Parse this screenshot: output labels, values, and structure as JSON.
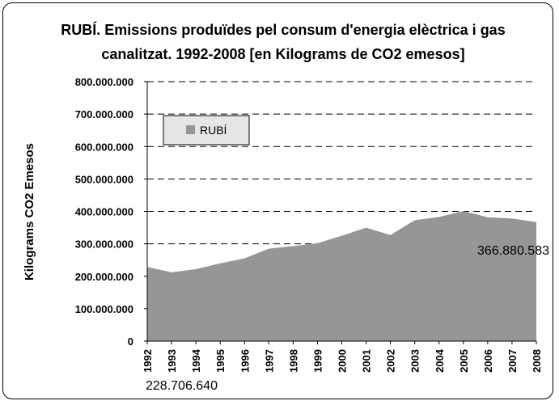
{
  "chart_data": {
    "type": "area",
    "title_line1": "RUBÍ. Emissions produïdes pel consum d'energia elèctrica i gas",
    "title_line2": "canalitzat. 1992-2008 [en Kilograms de CO2 emesos]",
    "ylabel": "Kilograms CO2 Emesos",
    "xlabel": "",
    "x": [
      "1992",
      "1993",
      "1994",
      "1995",
      "1996",
      "1997",
      "1998",
      "1999",
      "2000",
      "2001",
      "2002",
      "2003",
      "2004",
      "2005",
      "2006",
      "2007",
      "2008"
    ],
    "series": [
      {
        "name": "RUBÍ",
        "values": [
          228706640,
          212000000,
          222000000,
          240000000,
          255000000,
          285000000,
          293000000,
          302000000,
          325000000,
          350000000,
          327000000,
          373000000,
          383000000,
          401000000,
          382000000,
          378000000,
          366880583
        ]
      }
    ],
    "ylim": [
      0,
      800000000
    ],
    "yticks": [
      {
        "value": 0,
        "label": "0"
      },
      {
        "value": 100000000,
        "label": "100.000.000"
      },
      {
        "value": 200000000,
        "label": "200.000.000"
      },
      {
        "value": 300000000,
        "label": "300.000.000"
      },
      {
        "value": 400000000,
        "label": "400.000.000"
      },
      {
        "value": 500000000,
        "label": "500.000.000"
      },
      {
        "value": 600000000,
        "label": "600.000.000"
      },
      {
        "value": 700000000,
        "label": "700.000.000"
      },
      {
        "value": 800000000,
        "label": "800.000.000"
      }
    ],
    "data_labels": [
      {
        "index": 0,
        "text": "228.706.640"
      },
      {
        "index": 16,
        "text": "366.880.583"
      }
    ],
    "grid": true,
    "legend_position": "top-left",
    "colors": {
      "area": "#969696",
      "grid": "#000000",
      "legend_bg": "#e6e6e6"
    }
  }
}
